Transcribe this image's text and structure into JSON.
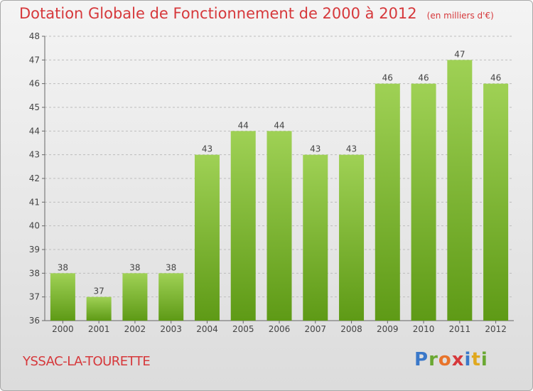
{
  "title": "Dotation Globale de Fonctionnement de 2000 à 2012",
  "unit": "(en milliers d'€)",
  "location": "YSSAC-LA-TOURETTE",
  "logo_text": "Proxiti",
  "colors": {
    "title": "#d6383b",
    "bar_top": "#9fd155",
    "bar_bottom": "#5e9a16",
    "grid": "#bdbdbd"
  },
  "chart_data": {
    "type": "bar",
    "categories": [
      "2000",
      "2001",
      "2002",
      "2003",
      "2004",
      "2005",
      "2006",
      "2007",
      "2008",
      "2009",
      "2010",
      "2011",
      "2012"
    ],
    "values": [
      38,
      37,
      38,
      38,
      43,
      44,
      44,
      43,
      43,
      46,
      46,
      47,
      46
    ],
    "yticks": [
      36,
      37,
      38,
      39,
      40,
      41,
      42,
      43,
      44,
      45,
      46,
      47,
      48
    ],
    "ylim": [
      36,
      48
    ],
    "grid": true,
    "grid_style": "dashed horizontal",
    "data_labels": true,
    "legend": "none"
  }
}
